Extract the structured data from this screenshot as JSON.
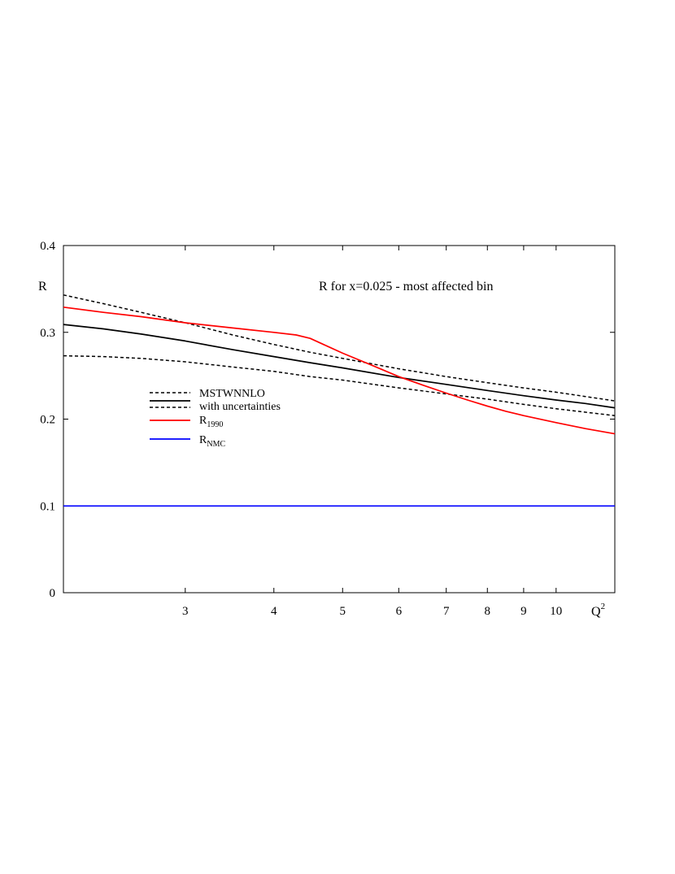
{
  "chart_data": {
    "type": "line",
    "title": "R for x=0.025 - most affected bin",
    "ylabel": "R",
    "xlabel": "Q",
    "xlabel_sup": "2",
    "x_scale": "log",
    "xlim": [
      2.02,
      12.1
    ],
    "ylim": [
      0,
      0.4
    ],
    "x_ticks": [
      3,
      4,
      5,
      6,
      7,
      8,
      9,
      10
    ],
    "y_ticks": [
      0,
      0.1,
      0.2,
      0.3,
      0.4
    ],
    "y_tick_labels": [
      "0",
      "0.1",
      "0.2",
      "0.3",
      "0.4"
    ],
    "grid": false,
    "legend_position": "left-center",
    "legend": [
      {
        "text": "MSTWNNLO",
        "style": "dashed",
        "color": "#000000"
      },
      {
        "text": "with uncertainties",
        "style": "solid",
        "color": "#000000"
      },
      {
        "text": "",
        "style": "dashed",
        "color": "#000000"
      },
      {
        "text": "R",
        "sub": "1990",
        "style": "solid",
        "color": "#ff0000"
      },
      {
        "text": "R",
        "sub": "NMC",
        "style": "solid",
        "color": "#0000ff"
      }
    ],
    "series": [
      {
        "id": "upper",
        "style": "dashed",
        "color": "#000000",
        "x": [
          2.02,
          2.3,
          2.6,
          3.0,
          3.5,
          4.0,
          4.5,
          5.0,
          6.0,
          7.0,
          8.0,
          9.0,
          10.0,
          11.0,
          12.1
        ],
        "y": [
          0.343,
          0.333,
          0.323,
          0.311,
          0.297,
          0.286,
          0.277,
          0.27,
          0.258,
          0.249,
          0.242,
          0.236,
          0.231,
          0.226,
          0.221
        ]
      },
      {
        "id": "central",
        "style": "solid",
        "color": "#000000",
        "x": [
          2.02,
          2.3,
          2.6,
          3.0,
          3.5,
          4.0,
          4.5,
          5.0,
          6.0,
          7.0,
          8.0,
          9.0,
          10.0,
          11.0,
          12.1
        ],
        "y": [
          0.309,
          0.304,
          0.298,
          0.29,
          0.28,
          0.272,
          0.265,
          0.259,
          0.248,
          0.24,
          0.233,
          0.227,
          0.222,
          0.218,
          0.213
        ]
      },
      {
        "id": "lower",
        "style": "dashed",
        "color": "#000000",
        "x": [
          2.02,
          2.3,
          2.6,
          3.0,
          3.5,
          4.0,
          4.5,
          5.0,
          6.0,
          7.0,
          8.0,
          9.0,
          10.0,
          11.0,
          12.1
        ],
        "y": [
          0.273,
          0.272,
          0.27,
          0.266,
          0.26,
          0.255,
          0.249,
          0.245,
          0.236,
          0.229,
          0.223,
          0.217,
          0.212,
          0.208,
          0.204
        ]
      },
      {
        "id": "r1990",
        "style": "solid",
        "color": "#ff0000",
        "x": [
          2.02,
          2.3,
          2.6,
          3.0,
          3.5,
          4.0,
          4.3,
          4.5,
          4.7,
          5.0,
          5.5,
          6.0,
          6.5,
          7.0,
          7.5,
          8.0,
          8.5,
          9.0,
          10.0,
          11.0,
          12.1
        ],
        "y": [
          0.329,
          0.323,
          0.318,
          0.311,
          0.305,
          0.3,
          0.297,
          0.293,
          0.286,
          0.276,
          0.262,
          0.249,
          0.239,
          0.23,
          0.222,
          0.215,
          0.209,
          0.204,
          0.196,
          0.189,
          0.183
        ]
      },
      {
        "id": "rnmc",
        "style": "solid",
        "color": "#0000ff",
        "x": [
          2.02,
          12.1
        ],
        "y": [
          0.1,
          0.1
        ]
      }
    ]
  }
}
